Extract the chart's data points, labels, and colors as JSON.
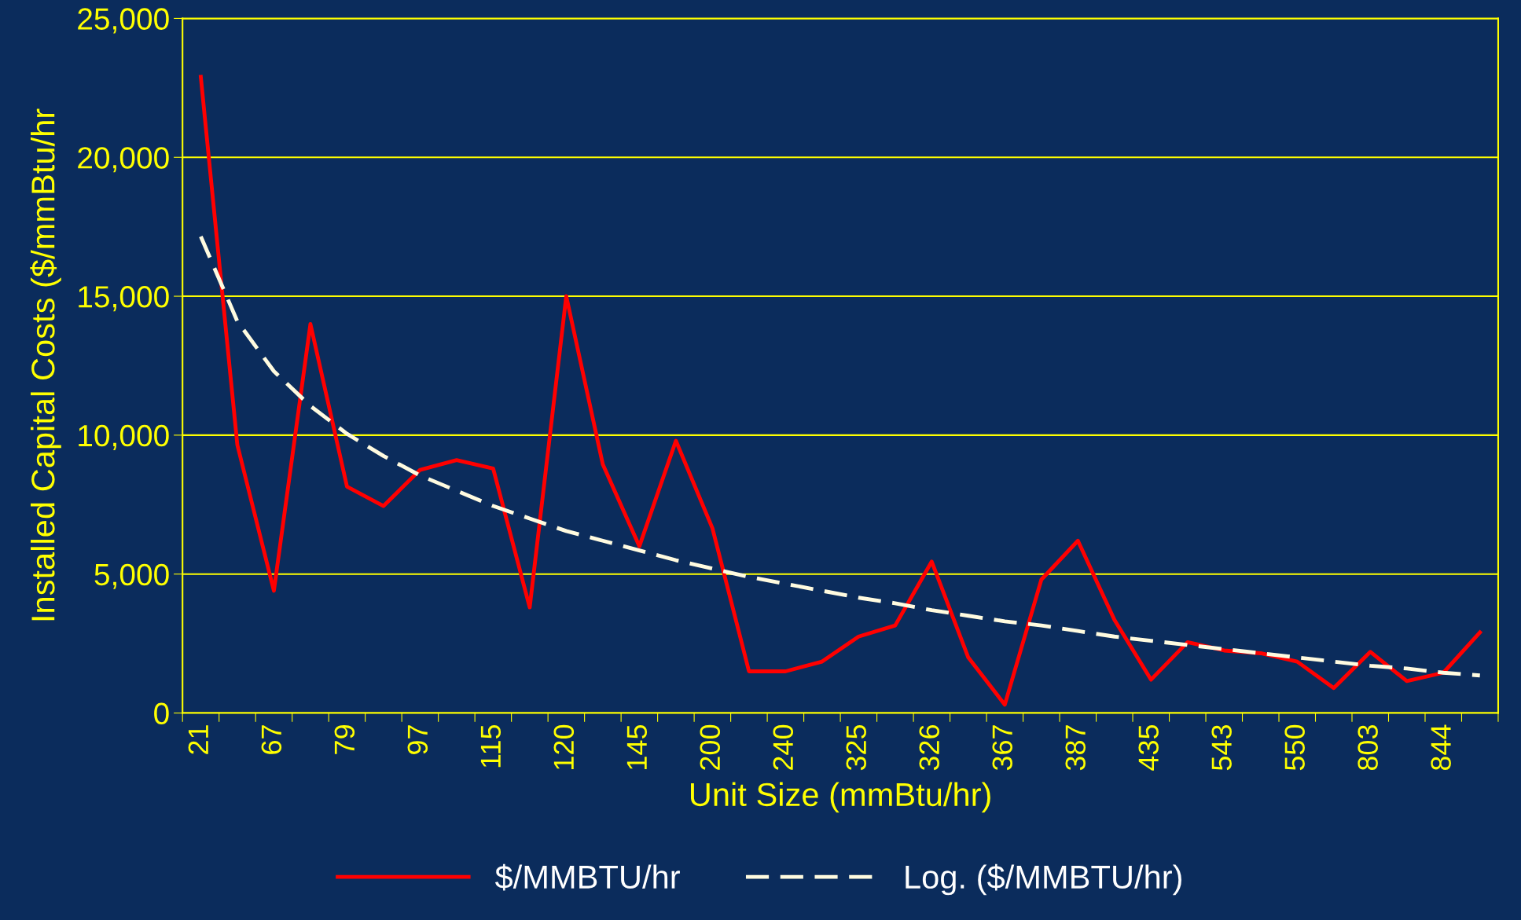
{
  "chart_data": {
    "type": "line",
    "xlabel": "Unit Size (mmBtu/hr)",
    "ylabel": "Installed Capital Costs ($/mmBtu/hr",
    "categories": [
      "21",
      null,
      "67",
      null,
      "79",
      null,
      "97",
      null,
      "115",
      null,
      "120",
      null,
      "145",
      null,
      "200",
      null,
      "240",
      null,
      "325",
      null,
      "326",
      null,
      "367",
      null,
      "387",
      null,
      "435",
      null,
      "543",
      null,
      "550",
      null,
      "803",
      null,
      "844",
      null
    ],
    "series": [
      {
        "name": "$/MMBTU/hr",
        "color": "#ff0000",
        "line_style": "solid",
        "values": [
          22900,
          9650,
          4400,
          14000,
          8150,
          7450,
          8750,
          9100,
          8800,
          3800,
          15000,
          8950,
          6000,
          9800,
          6650,
          1500,
          1500,
          1850,
          2750,
          3150,
          5450,
          2000,
          300,
          4800,
          6200,
          3350,
          1200,
          2550,
          2250,
          2150,
          1850,
          900,
          2200,
          1150,
          1450,
          2900
        ]
      },
      {
        "name": "Log. ($/MMBTU/hr)",
        "color": "#fffbe0",
        "line_style": "dashed",
        "values": [
          17150,
          14100,
          12300,
          11050,
          10050,
          9250,
          8550,
          8000,
          7450,
          7000,
          6550,
          6200,
          5850,
          5500,
          5200,
          4900,
          4650,
          4400,
          4150,
          3950,
          3700,
          3500,
          3300,
          3150,
          2950,
          2750,
          2600,
          2450,
          2300,
          2150,
          2000,
          1850,
          1700,
          1600,
          1450,
          1350
        ]
      }
    ],
    "ylim": [
      0,
      25000
    ],
    "yticks": [
      {
        "value": 0,
        "label": "0"
      },
      {
        "value": 5000,
        "label": "5,000"
      },
      {
        "value": 10000,
        "label": "10,000"
      },
      {
        "value": 15000,
        "label": "15,000"
      },
      {
        "value": 20000,
        "label": "20,000"
      },
      {
        "value": 25000,
        "label": "25,000"
      }
    ],
    "grid": "y",
    "legend": "bottom",
    "marker": "none"
  }
}
